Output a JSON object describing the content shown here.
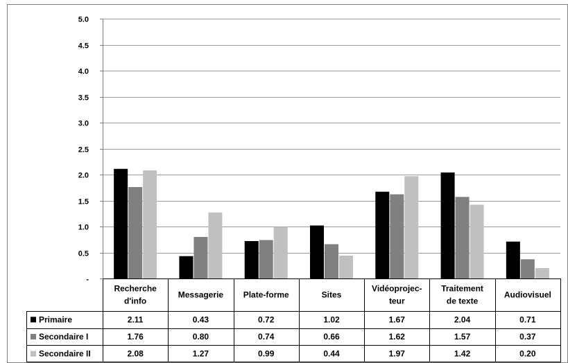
{
  "chart_data": {
    "type": "bar",
    "title": "",
    "xlabel": "",
    "ylabel": "",
    "ylim": [
      0,
      5
    ],
    "yticks": [
      "-",
      "0.5",
      "1.0",
      "1.5",
      "2.0",
      "2.5",
      "3.0",
      "3.5",
      "4.0",
      "4.5",
      "5.0"
    ],
    "grid": true,
    "legend_placement": "data-table-left",
    "categories": [
      [
        "Recherche",
        "d'info"
      ],
      [
        "Messagerie"
      ],
      [
        "Plate-forme"
      ],
      [
        "Sites"
      ],
      [
        "Vidéoprojec-",
        "teur"
      ],
      [
        "Traitement",
        "de texte"
      ],
      [
        "Audiovisuel"
      ]
    ],
    "series": [
      {
        "name": "Primaire",
        "color": "#000000",
        "values": [
          2.11,
          0.43,
          0.72,
          1.02,
          1.67,
          2.04,
          0.71
        ],
        "labels": [
          "2.11",
          "0.43",
          "0.72",
          "1.02",
          "1.67",
          "2.04",
          "0.71"
        ]
      },
      {
        "name": "Secondaire I",
        "color": "#808080",
        "values": [
          1.76,
          0.8,
          0.74,
          0.66,
          1.62,
          1.57,
          0.37
        ],
        "labels": [
          "1.76",
          "0.80",
          "0.74",
          "0.66",
          "1.62",
          "1.57",
          "0.37"
        ]
      },
      {
        "name": "Secondaire II",
        "color": "#c0c0c0",
        "values": [
          2.08,
          1.27,
          0.99,
          0.44,
          1.97,
          1.42,
          0.2
        ],
        "labels": [
          "2.08",
          "1.27",
          "0.99",
          "0.44",
          "1.97",
          "1.42",
          "0.20"
        ]
      }
    ]
  }
}
